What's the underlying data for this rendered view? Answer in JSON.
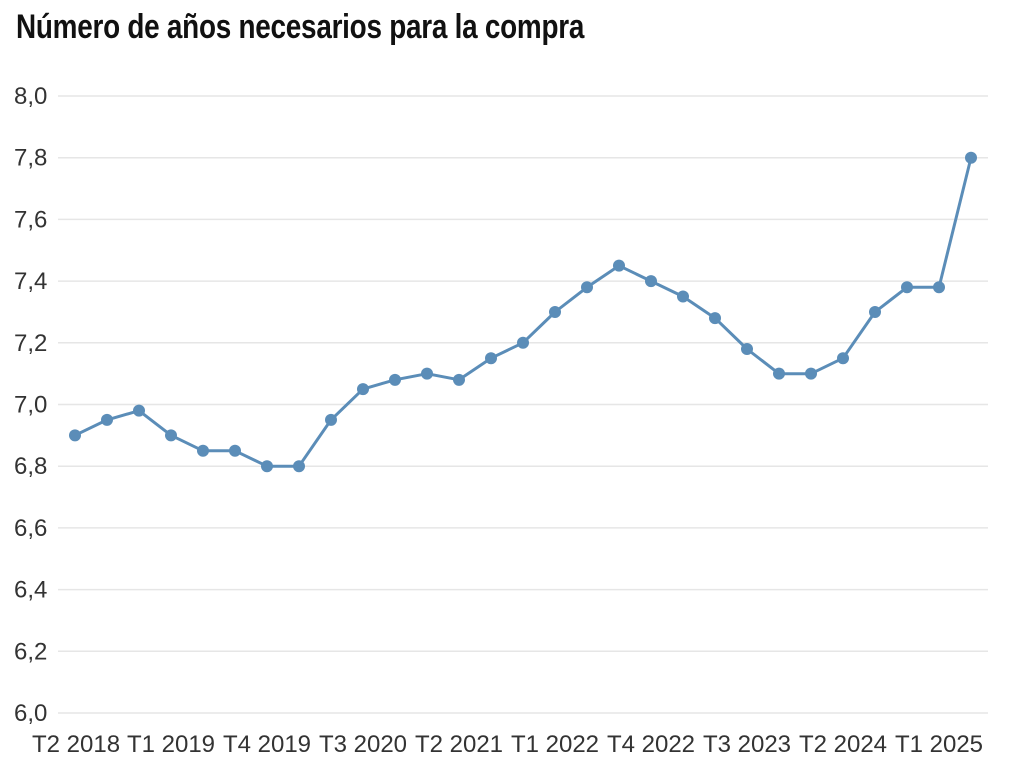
{
  "chart_data": {
    "type": "line",
    "title": "Número de años necesarios para la compra",
    "xlabel": "",
    "ylabel": "",
    "categories": [
      "T2 2018",
      "T3 2018",
      "T4 2018",
      "T1 2019",
      "T2 2019",
      "T3 2019",
      "T4 2019",
      "T1 2020",
      "T2 2020",
      "T3 2020",
      "T4 2020",
      "T1 2021",
      "T2 2021",
      "T3 2021",
      "T4 2021",
      "T1 2022",
      "T2 2022",
      "T3 2022",
      "T4 2022",
      "T1 2023",
      "T2 2023",
      "T3 2023",
      "T4 2023",
      "T1 2024",
      "T2 2024",
      "T3 2024",
      "T4 2024",
      "T1 2025",
      "T2 2025"
    ],
    "x_tick_labels": [
      "T2 2018",
      "T1 2019",
      "T4 2019",
      "T3 2020",
      "T2 2021",
      "T1 2022",
      "T4 2022",
      "T3 2023",
      "T2 2024",
      "T1 2025"
    ],
    "series": [
      {
        "name": "Número de años",
        "values": [
          6.9,
          6.95,
          6.98,
          6.9,
          6.85,
          6.85,
          6.8,
          6.8,
          6.95,
          7.05,
          7.08,
          7.1,
          7.08,
          7.15,
          7.2,
          7.3,
          7.38,
          7.45,
          7.4,
          7.35,
          7.28,
          7.18,
          7.1,
          7.1,
          7.15,
          7.3,
          7.38,
          7.38,
          7.8
        ]
      }
    ],
    "ylim": [
      6.0,
      8.0
    ],
    "y_ticks": [
      6.0,
      6.2,
      6.4,
      6.6,
      6.8,
      7.0,
      7.2,
      7.4,
      7.6,
      7.8,
      8.0
    ],
    "decimal_separator": ",",
    "grid": true,
    "legend": "none",
    "colors": {
      "series": "#5b8db8",
      "grid": "#e6e6e6",
      "text": "#333333"
    }
  }
}
